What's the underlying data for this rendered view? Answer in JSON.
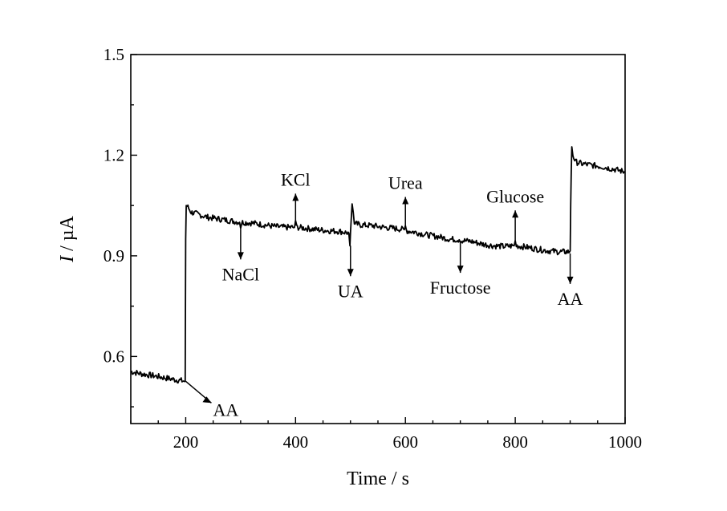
{
  "chart_data": {
    "type": "line",
    "title": "",
    "xlabel": "Time / s",
    "ylabel_italic": "I",
    "ylabel_rest": " / µA",
    "xlim": [
      100,
      1000
    ],
    "ylim": [
      0.4,
      1.5
    ],
    "xticks": [
      200,
      400,
      600,
      800,
      1000
    ],
    "xtick_labels": [
      "200",
      "400",
      "600",
      "800",
      "1000"
    ],
    "yticks": [
      0.6,
      0.9,
      1.2,
      1.5
    ],
    "ytick_labels": [
      "0.6",
      "0.9",
      "1.2",
      "1.5"
    ],
    "grid": false,
    "series": [
      {
        "name": "current",
        "color": "#000000",
        "x": [
          100,
          120,
          140,
          160,
          180,
          199,
          200,
          201,
          204,
          210,
          220,
          240,
          260,
          280,
          298,
          300,
          302,
          320,
          340,
          360,
          380,
          398,
          400,
          402,
          420,
          440,
          460,
          480,
          497,
          499,
          500,
          501,
          503,
          505,
          507,
          510,
          520,
          540,
          560,
          580,
          598,
          600,
          602,
          620,
          640,
          660,
          680,
          698,
          700,
          702,
          720,
          740,
          760,
          780,
          798,
          800,
          802,
          820,
          840,
          860,
          880,
          899,
          900,
          901,
          902,
          903,
          905,
          910,
          920,
          940,
          960,
          980,
          1000
        ],
        "y": [
          0.555,
          0.548,
          0.543,
          0.537,
          0.531,
          0.526,
          0.95,
          1.05,
          1.045,
          1.03,
          1.025,
          1.015,
          1.01,
          1.005,
          1.0,
          0.982,
          1.0,
          0.998,
          0.993,
          0.988,
          0.985,
          0.985,
          1.005,
          0.985,
          0.982,
          0.978,
          0.975,
          0.973,
          0.968,
          0.93,
          0.97,
          1.0,
          1.055,
          1.03,
          0.995,
          0.995,
          0.992,
          0.99,
          0.985,
          0.982,
          0.978,
          0.99,
          0.975,
          0.97,
          0.962,
          0.957,
          0.95,
          0.948,
          0.94,
          0.946,
          0.943,
          0.935,
          0.93,
          0.928,
          0.93,
          0.945,
          0.93,
          0.926,
          0.92,
          0.915,
          0.912,
          0.912,
          0.915,
          1.05,
          1.15,
          1.225,
          1.2,
          1.18,
          1.175,
          1.17,
          1.165,
          1.158,
          1.15
        ]
      }
    ],
    "annotations": [
      {
        "label": "AA",
        "x": 200,
        "y": 0.526,
        "direction": "down-right"
      },
      {
        "label": "NaCl",
        "x": 300,
        "y": 0.985,
        "direction": "down"
      },
      {
        "label": "KCl",
        "x": 400,
        "y": 0.985,
        "direction": "up"
      },
      {
        "label": "UA",
        "x": 500,
        "y": 0.935,
        "direction": "down"
      },
      {
        "label": "Urea",
        "x": 600,
        "y": 0.975,
        "direction": "up"
      },
      {
        "label": "Fructose",
        "x": 700,
        "y": 0.945,
        "direction": "down"
      },
      {
        "label": "Glucose",
        "x": 800,
        "y": 0.935,
        "direction": "up"
      },
      {
        "label": "AA",
        "x": 900,
        "y": 0.912,
        "direction": "down"
      }
    ]
  }
}
